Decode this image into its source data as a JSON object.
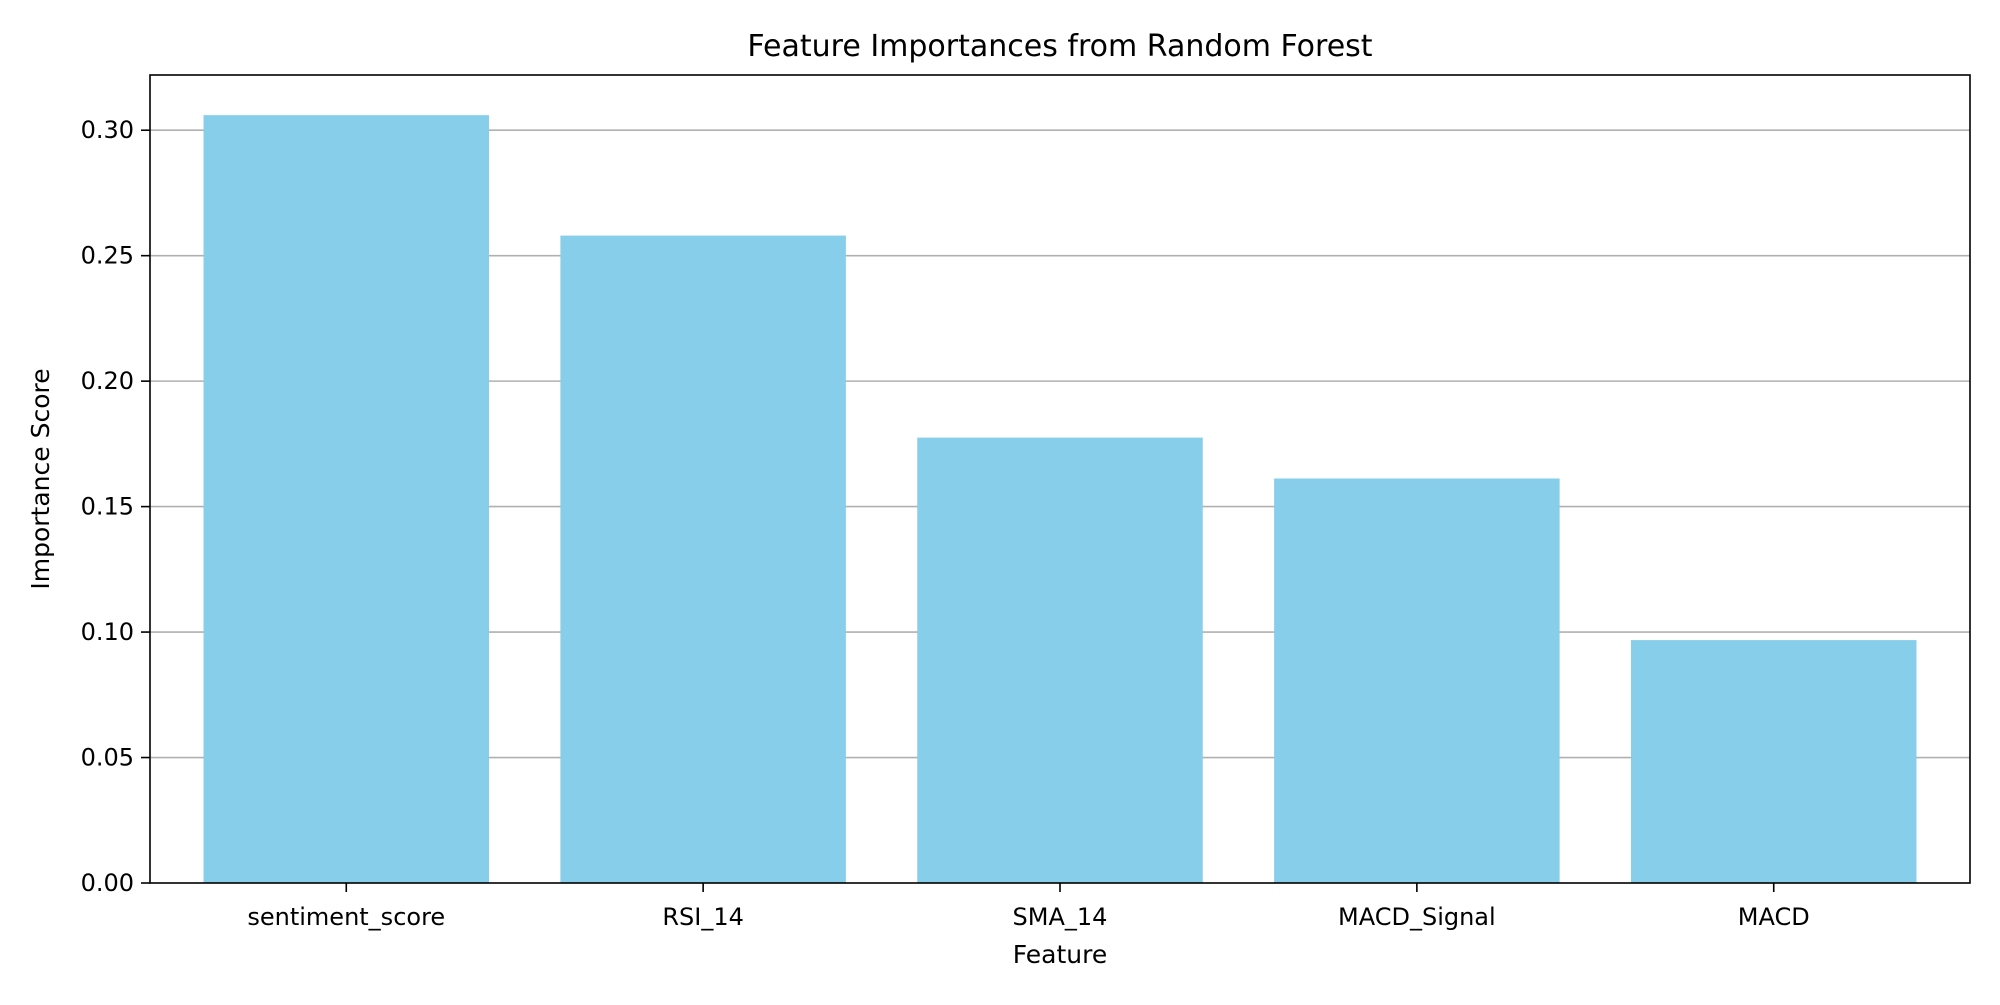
{
  "chart_data": {
    "type": "bar",
    "title": "Feature Importances from Random Forest",
    "xlabel": "Feature",
    "ylabel": "Importance Score",
    "categories": [
      "sentiment_score",
      "RSI_14",
      "SMA_14",
      "MACD_Signal",
      "MACD"
    ],
    "values": [
      0.306,
      0.258,
      0.1775,
      0.1612,
      0.0968
    ],
    "ylim": [
      0,
      0.322
    ],
    "yticks": [
      0.0,
      0.05,
      0.1,
      0.15,
      0.2,
      0.25,
      0.3
    ],
    "ytick_labels": [
      "0.00",
      "0.05",
      "0.10",
      "0.15",
      "0.20",
      "0.25",
      "0.30"
    ],
    "grid": "y",
    "legend": "none",
    "bar_color": "#87CEEB",
    "grid_color": "#b0b0b0"
  }
}
